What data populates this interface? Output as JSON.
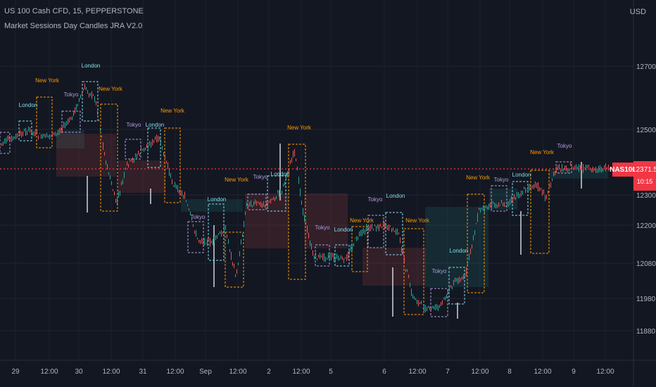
{
  "header": {
    "title": "US 100 Cash CFD, 15, PEPPERSTONE",
    "indicator": "Market Sessions Day Candles JRA V2.0",
    "currency": "USD"
  },
  "price_scale": {
    "ticks": [
      "12700.0",
      "12500.0",
      "12300.0",
      "12200.0",
      "12080.0",
      "11980.0",
      "11880.0"
    ]
  },
  "time_axis": {
    "labels": [
      "29",
      "12:00",
      "30",
      "12:00",
      "31",
      "12:00",
      "Sep",
      "12:00",
      "2",
      "12:00",
      "5",
      "6",
      "12:00",
      "7",
      "12:00",
      "8",
      "12:00",
      "9",
      "12:00"
    ]
  },
  "current_price": {
    "symbol": "NAS100",
    "value": "12371.5",
    "countdown": "10:15"
  },
  "session_labels": {
    "tokyo": "Tokyo",
    "london": "London",
    "new_york": "New York"
  },
  "colors": {
    "background": "#131722",
    "bull": "#26a69a",
    "bear": "#ef5350",
    "tokyo": "#b39ddb",
    "london": "#80deea",
    "new_york": "#ff9800",
    "price_line": "#f23645"
  }
}
